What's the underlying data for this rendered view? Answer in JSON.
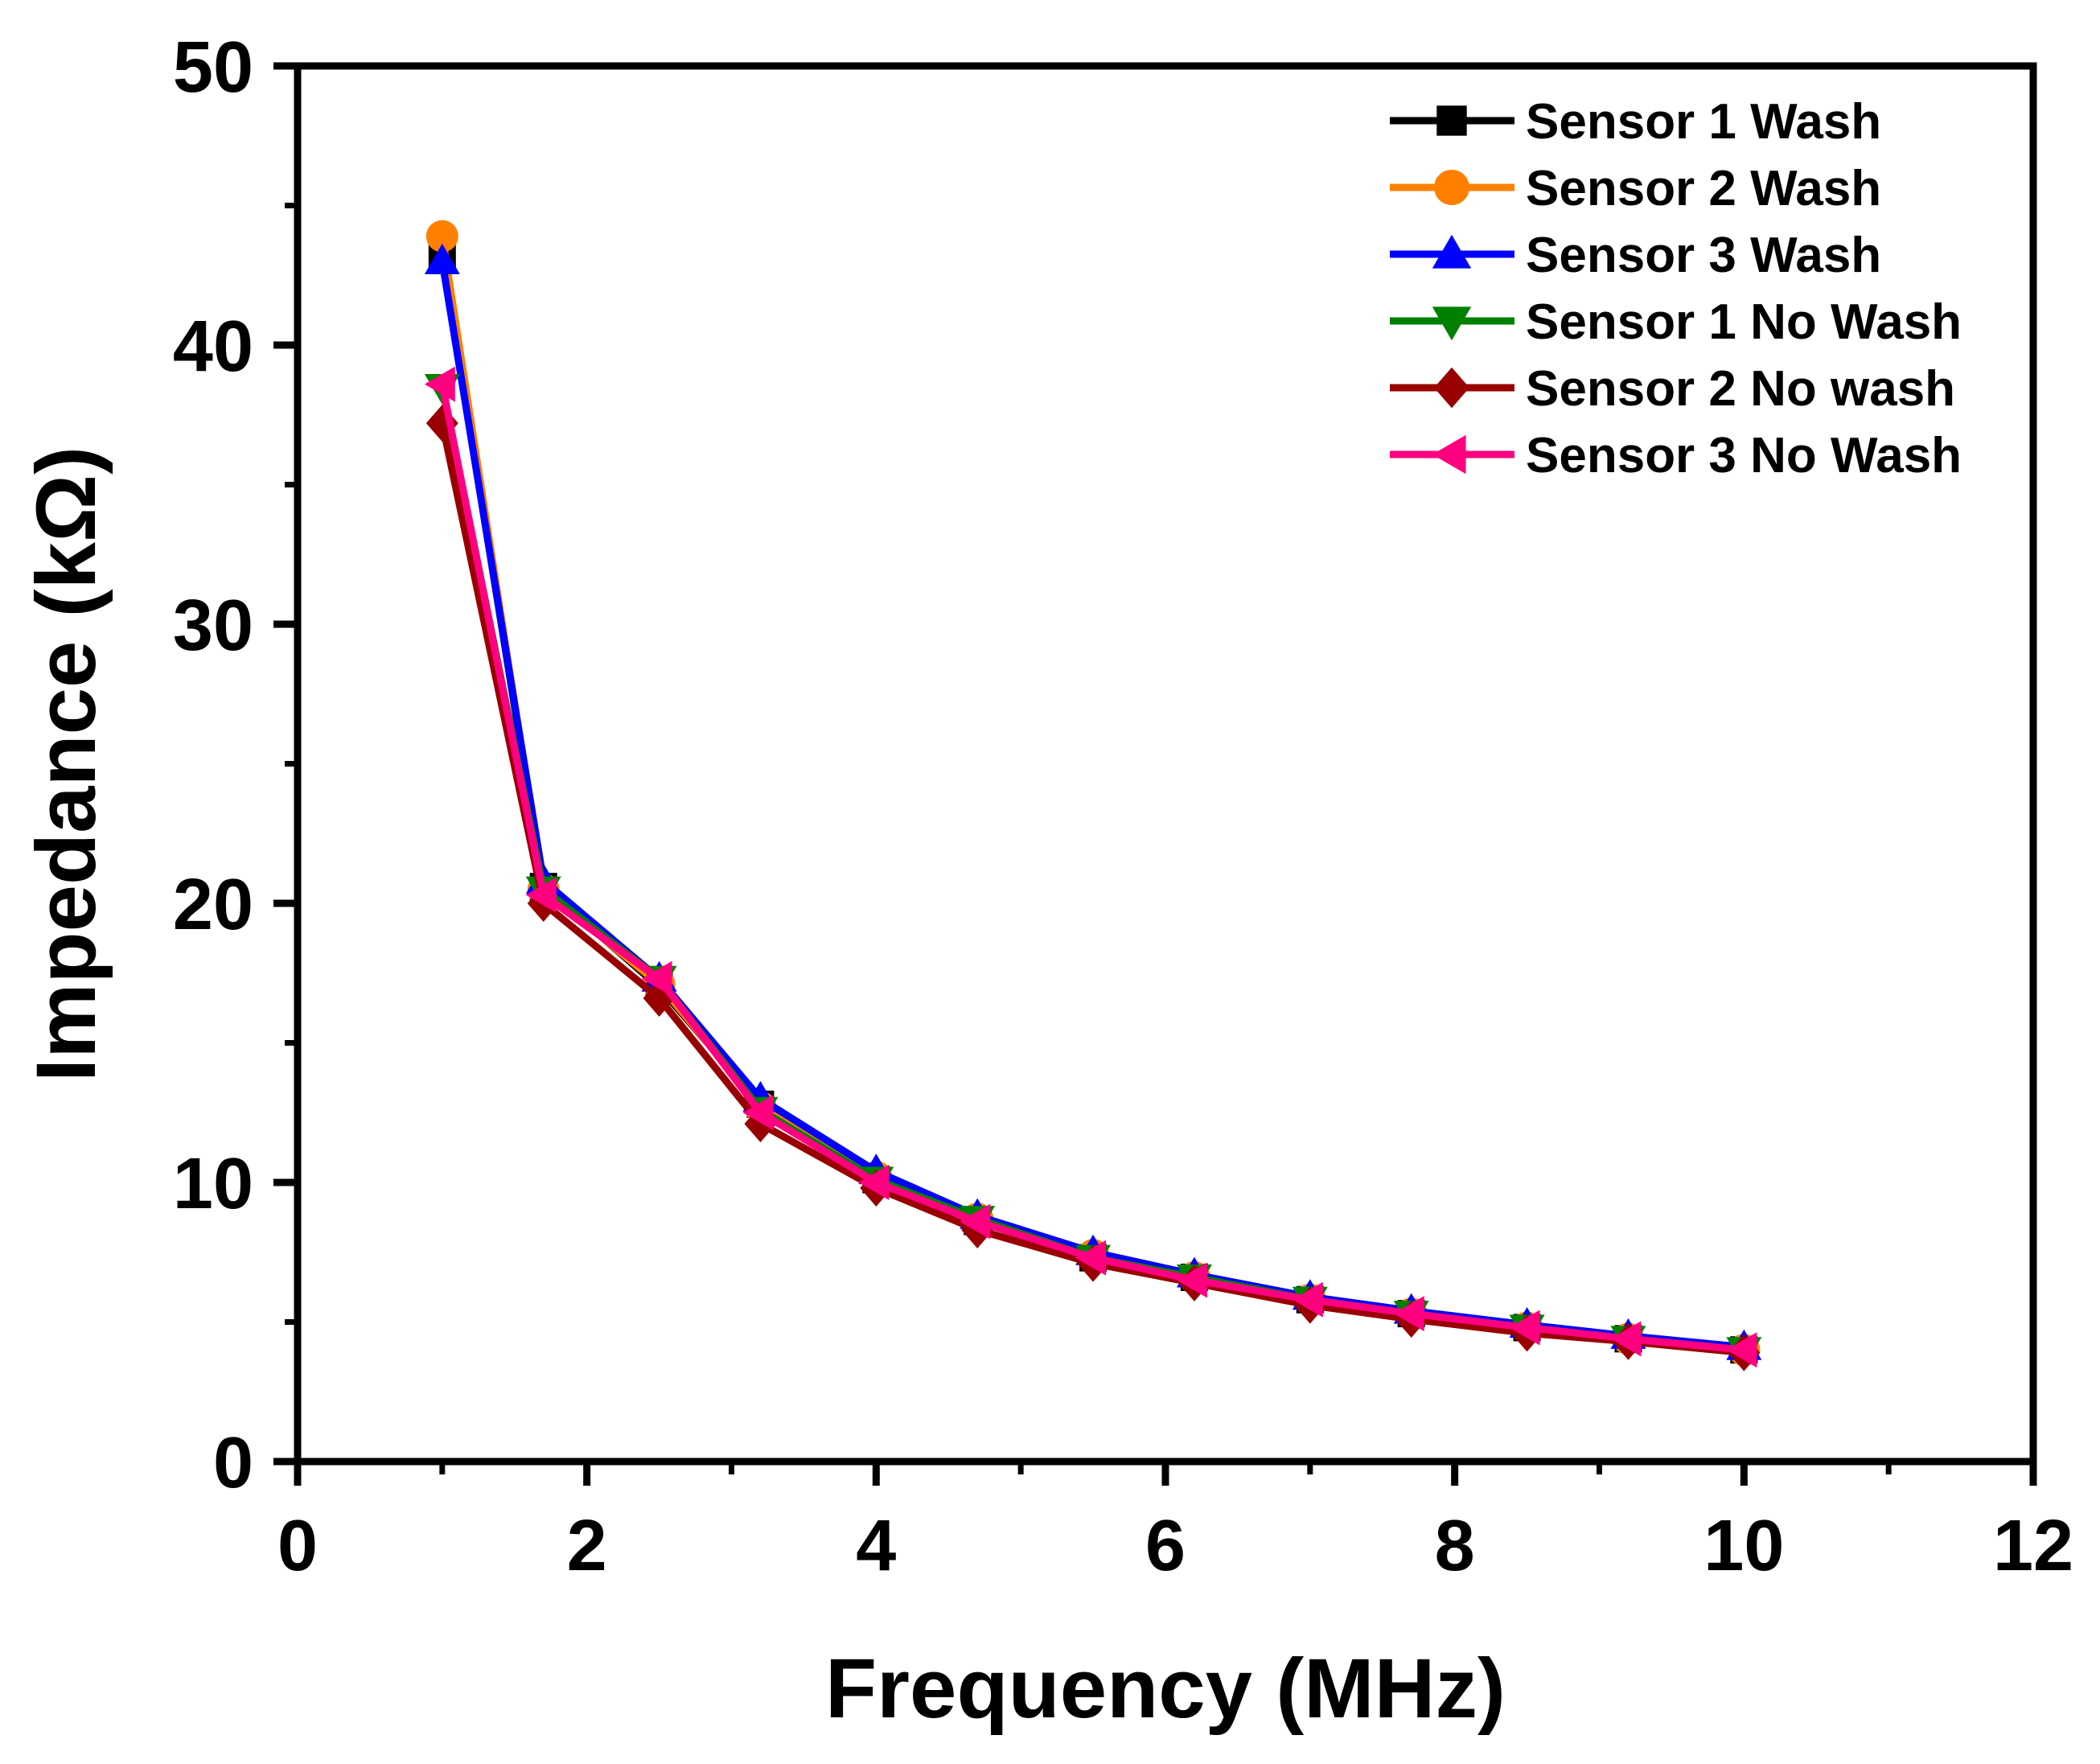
{
  "chart_data": {
    "type": "line",
    "title": "",
    "xlabel": "Frequency (MHz)",
    "ylabel": "Impedance (kΩ)",
    "xlim": [
      0,
      12
    ],
    "ylim": [
      0,
      50
    ],
    "xticks": [
      "0",
      "2",
      "4",
      "6",
      "8",
      "10",
      "12"
    ],
    "yticks": [
      "0",
      "10",
      "20",
      "30",
      "40",
      "50"
    ],
    "grid": false,
    "legend_position": "top-right",
    "x": [
      1.0,
      1.7,
      2.5,
      3.2,
      4.0,
      4.7,
      5.5,
      6.2,
      7.0,
      7.7,
      8.5,
      9.2,
      10.0
    ],
    "series": [
      {
        "name": "Sensor 1 Wash",
        "color": "#000000",
        "marker": "square",
        "values": [
          43.2,
          20.6,
          17.0,
          12.8,
          10.1,
          8.6,
          7.3,
          6.6,
          5.8,
          5.3,
          4.8,
          4.4,
          4.0
        ]
      },
      {
        "name": "Sensor 2 Wash",
        "color": "#FF8000",
        "marker": "circle",
        "values": [
          43.9,
          20.5,
          17.1,
          12.7,
          10.2,
          8.7,
          7.4,
          6.6,
          5.8,
          5.3,
          4.8,
          4.4,
          4.0
        ]
      },
      {
        "name": "Sensor 3 Wash",
        "color": "#0000FF",
        "marker": "triangle-up",
        "values": [
          43.0,
          20.8,
          17.3,
          13.0,
          10.4,
          8.8,
          7.5,
          6.7,
          5.9,
          5.4,
          4.9,
          4.5,
          4.1
        ]
      },
      {
        "name": "Sensor 1 No Wash",
        "color": "#008000",
        "marker": "triangle-down",
        "values": [
          38.5,
          20.5,
          17.3,
          12.6,
          10.1,
          8.7,
          7.3,
          6.6,
          5.8,
          5.3,
          4.8,
          4.4,
          4.0
        ]
      },
      {
        "name": "Sensor 2 No wash",
        "color": "#990000",
        "marker": "diamond",
        "values": [
          37.2,
          20.0,
          16.6,
          12.1,
          9.8,
          8.3,
          7.1,
          6.4,
          5.6,
          5.1,
          4.6,
          4.3,
          3.9
        ]
      },
      {
        "name": "Sensor 3 No Wash",
        "color": "#FF0080",
        "marker": "triangle-left",
        "values": [
          38.6,
          20.3,
          17.3,
          12.5,
          10.0,
          8.6,
          7.3,
          6.5,
          5.8,
          5.3,
          4.8,
          4.4,
          4.0
        ]
      }
    ]
  }
}
